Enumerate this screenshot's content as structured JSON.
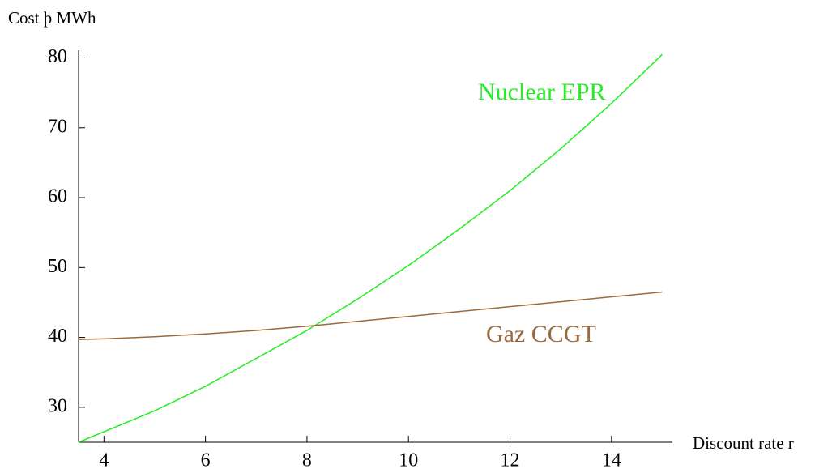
{
  "chart_data": {
    "type": "line",
    "y_label": "Cost  þ MWh",
    "x_label": "Discount rate r",
    "x": [
      3.5,
      4,
      5,
      6,
      7,
      8,
      9,
      10,
      11,
      12,
      13,
      14,
      15
    ],
    "series": [
      {
        "name": "Nuclear  EPR",
        "color": "#22ee22",
        "values": [
          25,
          26.5,
          29.5,
          33,
          37,
          41,
          45.5,
          50.3,
          55.5,
          61,
          67,
          73.5,
          80.5
        ]
      },
      {
        "name": "Gaz  CCGT",
        "color": "#9b6a3c",
        "values": [
          39.7,
          39.8,
          40.1,
          40.5,
          41,
          41.6,
          42.3,
          43,
          43.7,
          44.4,
          45.1,
          45.8,
          46.5
        ]
      }
    ],
    "xlim": [
      3.5,
      15.2
    ],
    "ylim": [
      25,
      81.1
    ],
    "xticks": [
      4,
      6,
      8,
      10,
      12,
      14
    ],
    "yticks": [
      30,
      40,
      50,
      60,
      70,
      80
    ],
    "grid": false
  }
}
